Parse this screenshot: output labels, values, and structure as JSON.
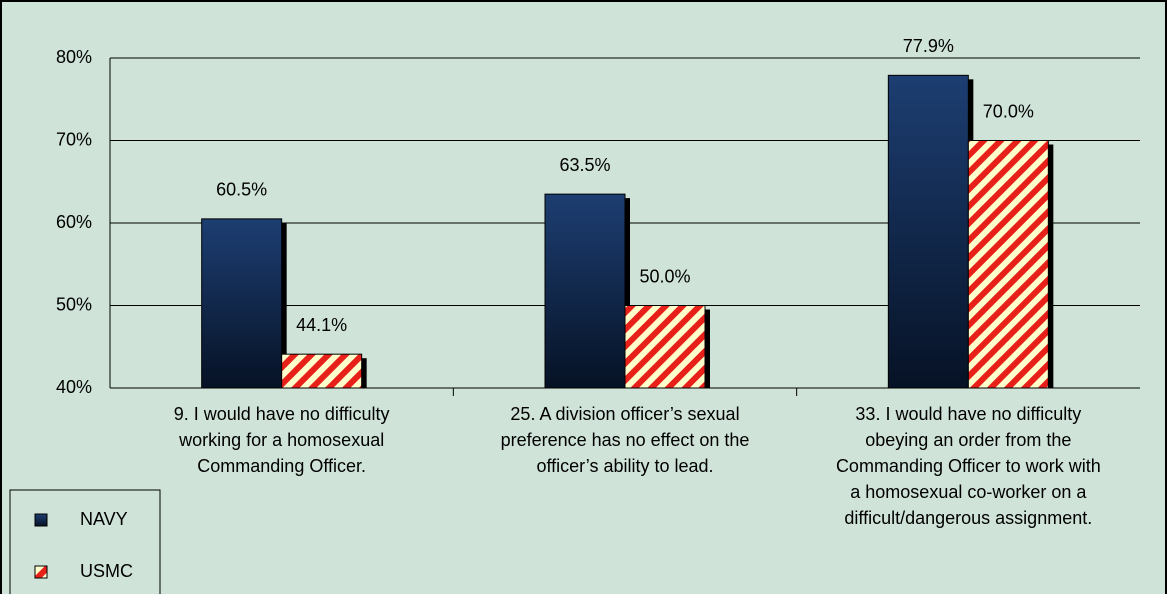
{
  "chart_data": {
    "type": "bar",
    "categories": [
      "9. I would have no difficulty\nworking for a homosexual\nCommanding Officer.",
      "25. A division officer’s sexual\npreference has no effect on the\nofficer’s ability to lead.",
      "33. I would have no difficulty\nobeying an order from the\nCommanding Officer to work with\na homosexual co-worker on a\ndifficult/dangerous assignment."
    ],
    "series": [
      {
        "name": "NAVY",
        "color": "#0f2a52",
        "values": [
          60.5,
          63.5,
          77.9
        ],
        "value_labels": [
          "60.5%",
          "63.5%",
          "77.9%"
        ]
      },
      {
        "name": "USMC",
        "color": "#e8201a",
        "values": [
          44.1,
          50.0,
          70.0
        ],
        "value_labels": [
          "44.1%",
          "50.0%",
          "70.0%"
        ]
      }
    ],
    "ylim": [
      40,
      80
    ],
    "yticks": [
      {
        "value": 40,
        "label": "40%"
      },
      {
        "value": 50,
        "label": "50%"
      },
      {
        "value": 60,
        "label": "60%"
      },
      {
        "value": 70,
        "label": "70%"
      },
      {
        "value": 80,
        "label": "80%"
      }
    ],
    "grid": true,
    "legend": "bottom-left"
  }
}
